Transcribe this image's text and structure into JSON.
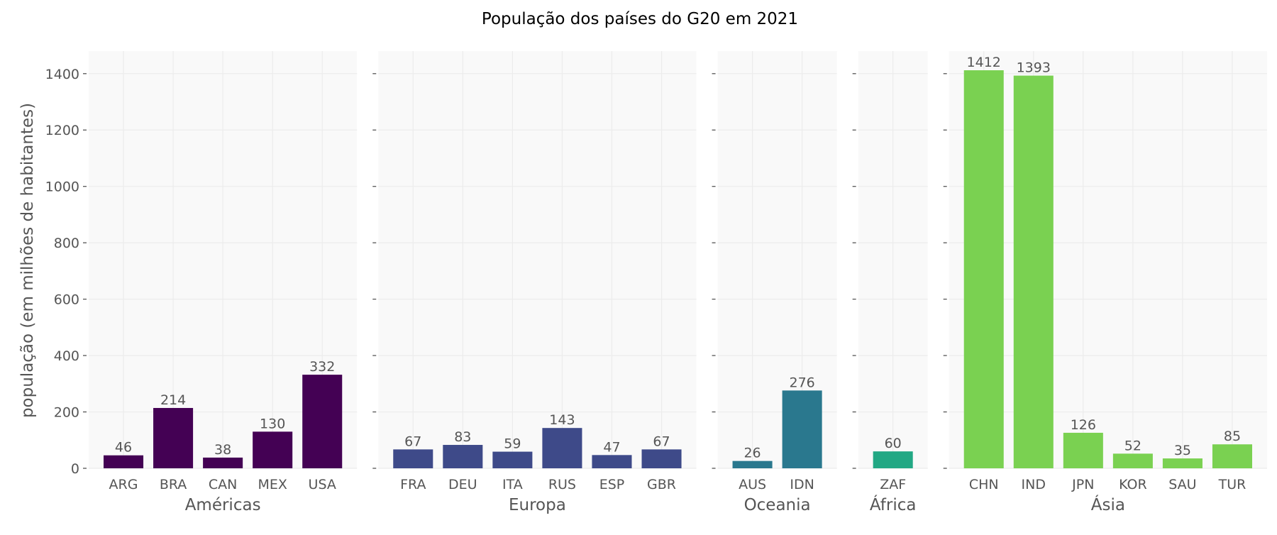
{
  "chart_data": {
    "type": "bar",
    "title": "População dos países do G20 em 2021",
    "ylabel": "população (em milhões de habitantes)",
    "ylim": [
      0,
      1480
    ],
    "yticks": [
      0,
      200,
      400,
      600,
      800,
      1000,
      1200,
      1400
    ],
    "grid": true,
    "groups": [
      {
        "name": "Américas",
        "color": "#440154",
        "categories": [
          "ARG",
          "BRA",
          "CAN",
          "MEX",
          "USA"
        ],
        "values": [
          46,
          214,
          38,
          130,
          332
        ]
      },
      {
        "name": "Europa",
        "color": "#3e4a89",
        "categories": [
          "FRA",
          "DEU",
          "ITA",
          "RUS",
          "ESP",
          "GBR"
        ],
        "values": [
          67,
          83,
          59,
          143,
          47,
          67
        ]
      },
      {
        "name": "Oceania",
        "color": "#2a788e",
        "categories": [
          "AUS",
          "IDN"
        ],
        "values": [
          26,
          276
        ]
      },
      {
        "name": "África",
        "color": "#22a884",
        "categories": [
          "ZAF"
        ],
        "values": [
          60
        ]
      },
      {
        "name": "Ásia",
        "color": "#7ad151",
        "categories": [
          "CHN",
          "IND",
          "JPN",
          "KOR",
          "SAU",
          "TUR"
        ],
        "values": [
          1412,
          1393,
          126,
          52,
          35,
          85
        ]
      }
    ]
  }
}
